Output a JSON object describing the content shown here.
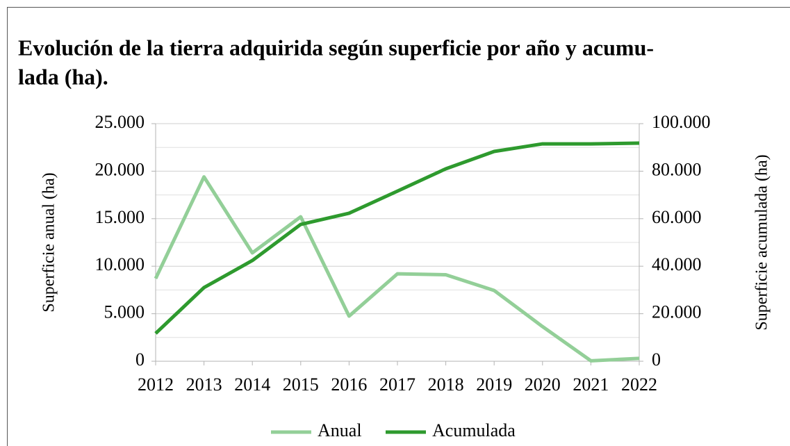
{
  "chart_data": {
    "type": "line",
    "title": [
      "Evolución de la tierra adquirida según superficie por año y acumu-",
      "lada (ha)."
    ],
    "y_label": "Superficie anual (ha)",
    "y2_label": "Superficie acumulada (ha)",
    "x": [
      2012,
      2013,
      2014,
      2015,
      2016,
      2017,
      2018,
      2019,
      2020,
      2021,
      2022
    ],
    "xlim": [
      2012,
      2022
    ],
    "xticks": [
      2012,
      2013,
      2014,
      2015,
      2016,
      2017,
      2018,
      2019,
      2020,
      2021,
      2022
    ],
    "ylim": [
      0,
      25000
    ],
    "yticks": [
      0,
      {
        "value": 5000,
        "label": "5.000"
      },
      {
        "value": 10000,
        "label": "10.000"
      },
      {
        "value": 15000,
        "label": "15.000"
      },
      {
        "value": 20000,
        "label": "20.000"
      },
      {
        "value": 25000,
        "label": "25.000"
      }
    ],
    "y_minor_ticks": [
      2500,
      7500,
      12500,
      17500,
      22500
    ],
    "y2lim": [
      0,
      100000
    ],
    "y2ticks": [
      0,
      {
        "value": 20000,
        "label": "20.000"
      },
      {
        "value": 40000,
        "label": "40.000"
      },
      {
        "value": 60000,
        "label": "60.000"
      },
      {
        "value": 80000,
        "label": "80.000"
      },
      {
        "value": 100000,
        "label": "100.000"
      }
    ],
    "grid": true,
    "legend": "bottom",
    "series": [
      {
        "name": "Anual",
        "color": "#93cf98",
        "values": [
          8700,
          19400,
          11400,
          15200,
          4750,
          9200,
          9100,
          7450,
          3650,
          50,
          300
        ]
      },
      {
        "name": "Acumulada",
        "color": "#2e9a2e",
        "axis": "y2",
        "values": [
          11700,
          31000,
          42400,
          57600,
          62300,
          71600,
          81000,
          88300,
          91500,
          91500,
          91800
        ]
      }
    ]
  }
}
